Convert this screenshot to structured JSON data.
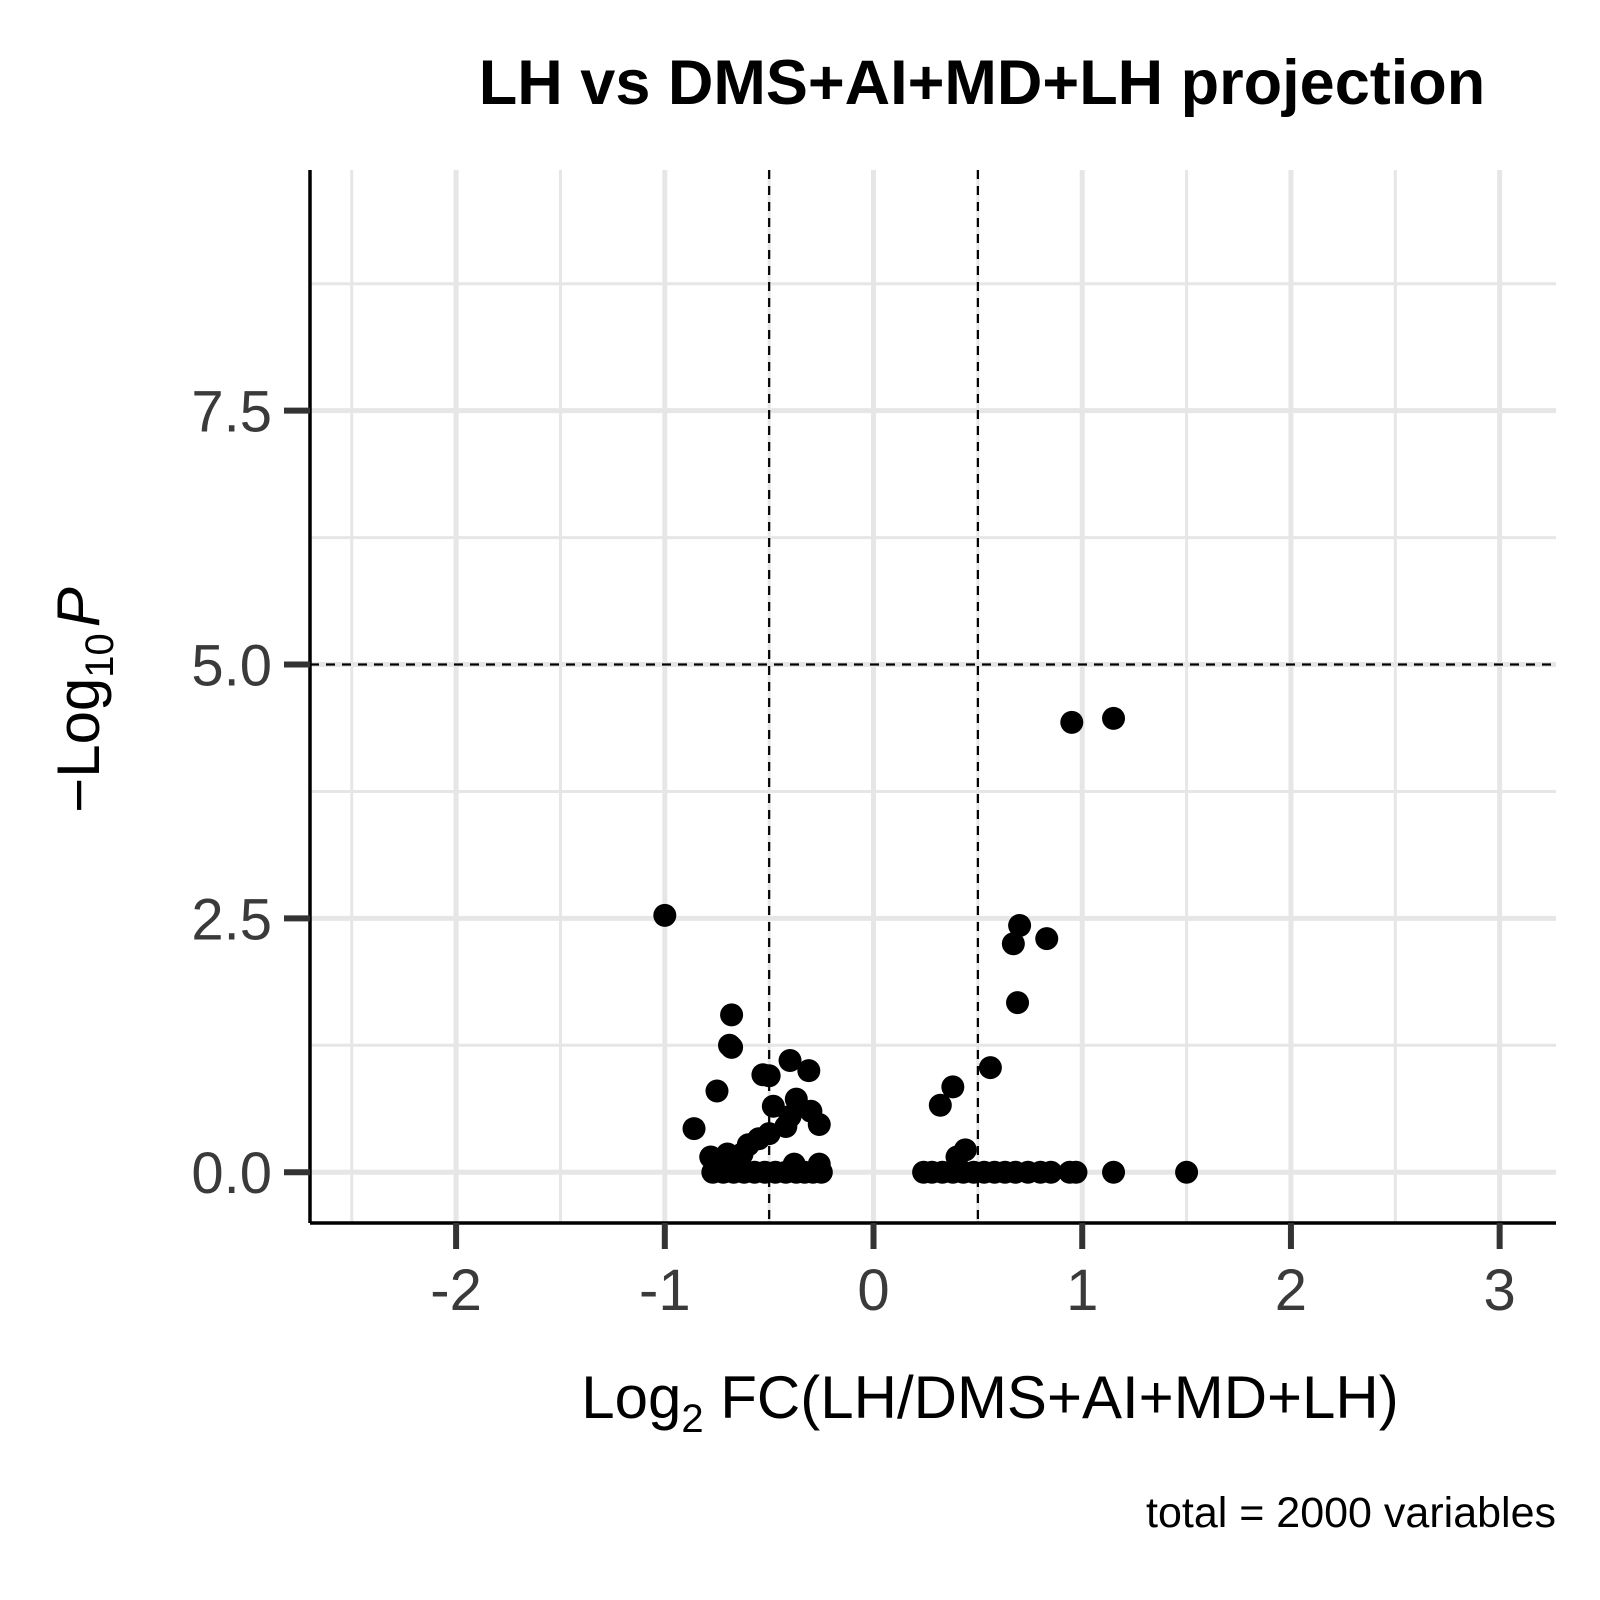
{
  "chart_data": {
    "type": "scatter",
    "title": "LH vs DMS+AI+MD+LH projection",
    "xlabel": {
      "prefix": "Log",
      "subscript": "2",
      "suffix": " FC(LH/DMS+AI+MD+LH)"
    },
    "ylabel": {
      "prefix": "−Log",
      "subscript": "10",
      "italic": "P"
    },
    "caption": "total = 2000 variables",
    "xlim": [
      -2.7,
      3.27
    ],
    "ylim": [
      -0.5,
      9.87
    ],
    "x_ticks": [
      -2,
      -1,
      0,
      1,
      2,
      3
    ],
    "x_tick_labels": [
      "-2",
      "-1",
      "0",
      "1",
      "2",
      "3"
    ],
    "y_ticks": [
      0,
      2.5,
      5,
      7.5
    ],
    "y_tick_labels": [
      "0.0",
      "2.5",
      "5.0",
      "7.5"
    ],
    "grid": true,
    "vlines": [
      -0.5,
      0.5
    ],
    "hline": 5,
    "point_color": "#000000",
    "grid_color": "#e6e6e6",
    "points": [
      {
        "x": 1.15,
        "y": 4.47
      },
      {
        "x": 0.95,
        "y": 4.43
      },
      {
        "x": -1.0,
        "y": 2.53
      },
      {
        "x": 0.7,
        "y": 2.43
      },
      {
        "x": 0.83,
        "y": 2.3
      },
      {
        "x": 0.67,
        "y": 2.25
      },
      {
        "x": 0.69,
        "y": 1.67
      },
      {
        "x": -0.68,
        "y": 1.55
      },
      {
        "x": -0.69,
        "y": 1.25
      },
      {
        "x": -0.68,
        "y": 1.23
      },
      {
        "x": -0.4,
        "y": 1.1
      },
      {
        "x": -0.31,
        "y": 1.0
      },
      {
        "x": -0.53,
        "y": 0.96
      },
      {
        "x": -0.5,
        "y": 0.95
      },
      {
        "x": 0.56,
        "y": 1.03
      },
      {
        "x": 0.38,
        "y": 0.84
      },
      {
        "x": -0.75,
        "y": 0.8
      },
      {
        "x": -0.37,
        "y": 0.72
      },
      {
        "x": -0.48,
        "y": 0.65
      },
      {
        "x": -0.3,
        "y": 0.6
      },
      {
        "x": -0.4,
        "y": 0.55
      },
      {
        "x": 0.32,
        "y": 0.66
      },
      {
        "x": -0.42,
        "y": 0.45
      },
      {
        "x": -0.26,
        "y": 0.47
      },
      {
        "x": -0.86,
        "y": 0.43
      },
      {
        "x": -0.5,
        "y": 0.38
      },
      {
        "x": -0.55,
        "y": 0.33
      },
      {
        "x": -0.6,
        "y": 0.27
      },
      {
        "x": -0.63,
        "y": 0.18
      },
      {
        "x": -0.7,
        "y": 0.18
      },
      {
        "x": -0.78,
        "y": 0.15
      },
      {
        "x": 0.44,
        "y": 0.22
      },
      {
        "x": 0.4,
        "y": 0.15
      },
      {
        "x": -0.72,
        "y": 0.1
      },
      {
        "x": -0.38,
        "y": 0.08
      },
      {
        "x": -0.26,
        "y": 0.08
      },
      {
        "x": -0.77,
        "y": 0.0
      },
      {
        "x": -0.72,
        "y": 0.0
      },
      {
        "x": -0.67,
        "y": 0.0
      },
      {
        "x": -0.62,
        "y": 0.0
      },
      {
        "x": -0.57,
        "y": 0.0
      },
      {
        "x": -0.52,
        "y": 0.0
      },
      {
        "x": -0.47,
        "y": 0.0
      },
      {
        "x": -0.42,
        "y": 0.0
      },
      {
        "x": -0.37,
        "y": 0.0
      },
      {
        "x": -0.33,
        "y": 0.0
      },
      {
        "x": -0.29,
        "y": 0.0
      },
      {
        "x": -0.25,
        "y": 0.0
      },
      {
        "x": 0.24,
        "y": 0.0
      },
      {
        "x": 0.28,
        "y": 0.0
      },
      {
        "x": 0.33,
        "y": 0.0
      },
      {
        "x": 0.38,
        "y": 0.0
      },
      {
        "x": 0.43,
        "y": 0.0
      },
      {
        "x": 0.48,
        "y": 0.0
      },
      {
        "x": 0.53,
        "y": 0.0
      },
      {
        "x": 0.58,
        "y": 0.0
      },
      {
        "x": 0.63,
        "y": 0.0
      },
      {
        "x": 0.68,
        "y": 0.0
      },
      {
        "x": 0.74,
        "y": 0.0
      },
      {
        "x": 0.8,
        "y": 0.0
      },
      {
        "x": 0.85,
        "y": 0.0
      },
      {
        "x": 0.94,
        "y": 0.0
      },
      {
        "x": 0.97,
        "y": 0.0
      },
      {
        "x": 1.15,
        "y": 0.0
      },
      {
        "x": 1.5,
        "y": 0.0
      }
    ]
  }
}
